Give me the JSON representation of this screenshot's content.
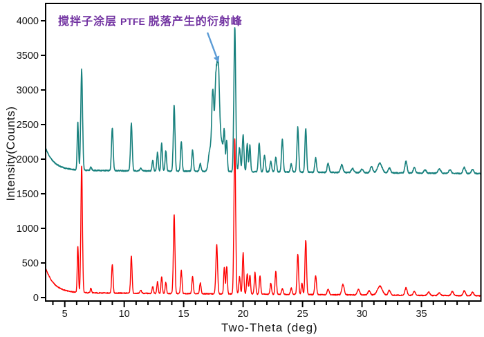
{
  "chart_data": {
    "type": "line",
    "title": "",
    "xlabel": "Two-Theta (deg)",
    "ylabel": "Intensity(Counts)",
    "x_range": [
      3.39,
      40.0
    ],
    "y_range": [
      -50,
      4250
    ],
    "x_major_ticks": [
      5,
      10,
      15,
      20,
      25,
      30,
      35
    ],
    "x_minor_tick_step": 1,
    "y_major_ticks": [
      0,
      500,
      1000,
      1500,
      2000,
      2500,
      3000,
      3500,
      4000
    ],
    "grid": false,
    "legend": "none",
    "frame_color": "#000000",
    "background": "#ffffff",
    "annotation": {
      "text_prefix": "搅拌子涂层 ",
      "text_code": "PTFE",
      "text_suffix": " 脱落产生的衍射峰",
      "text_color": "#7030a0",
      "arrow_color": "#5b9bd5",
      "arrow": {
        "from": [
          17.0,
          3830
        ],
        "to": [
          17.76,
          3480
        ]
      },
      "points_to": "diffraction peak at ~17.9 deg caused by PTFE stir-bar coating flaking"
    },
    "series": [
      {
        "name": "upper-trace-teal",
        "color": "#17807d",
        "line_width": 1.6,
        "seed": 11,
        "noise": 8,
        "baseline": {
          "flat": 1840,
          "slope_per_deg": -1.4,
          "start_hump": 320,
          "start_decay": 0.7
        },
        "peaks": [
          [
            6.1,
            680,
            0.055
          ],
          [
            6.42,
            1440,
            0.075
          ],
          [
            7.2,
            45,
            0.06
          ],
          [
            9.0,
            610,
            0.07
          ],
          [
            10.6,
            690,
            0.07
          ],
          [
            11.4,
            40,
            0.08
          ],
          [
            12.4,
            150,
            0.06
          ],
          [
            12.8,
            270,
            0.06
          ],
          [
            13.15,
            400,
            0.06
          ],
          [
            13.5,
            290,
            0.06
          ],
          [
            14.2,
            950,
            0.07
          ],
          [
            14.8,
            430,
            0.065
          ],
          [
            15.75,
            310,
            0.065
          ],
          [
            16.4,
            110,
            0.07
          ],
          [
            17.2,
            300,
            0.12
          ],
          [
            17.45,
            1150,
            0.09
          ],
          [
            17.7,
            1100,
            0.09
          ],
          [
            17.9,
            1380,
            0.11
          ],
          [
            18.2,
            420,
            0.2
          ],
          [
            18.42,
            380,
            0.055
          ],
          [
            18.62,
            400,
            0.055
          ],
          [
            19.3,
            2090,
            0.075
          ],
          [
            19.7,
            350,
            0.07
          ],
          [
            20.0,
            530,
            0.07
          ],
          [
            20.35,
            400,
            0.06
          ],
          [
            20.57,
            380,
            0.06
          ],
          [
            21.35,
            420,
            0.07
          ],
          [
            21.8,
            240,
            0.07
          ],
          [
            22.33,
            150,
            0.07
          ],
          [
            22.75,
            210,
            0.07
          ],
          [
            23.3,
            480,
            0.07
          ],
          [
            24.05,
            120,
            0.07
          ],
          [
            24.6,
            650,
            0.07
          ],
          [
            25.27,
            620,
            0.07
          ],
          [
            26.1,
            210,
            0.07
          ],
          [
            27.15,
            130,
            0.08
          ],
          [
            28.3,
            110,
            0.1
          ],
          [
            29.2,
            60,
            0.1
          ],
          [
            30.0,
            50,
            0.1
          ],
          [
            30.8,
            90,
            0.1
          ],
          [
            31.5,
            140,
            0.18
          ],
          [
            32.3,
            70,
            0.1
          ],
          [
            33.7,
            170,
            0.09
          ],
          [
            34.4,
            80,
            0.09
          ],
          [
            35.3,
            50,
            0.1
          ],
          [
            36.5,
            60,
            0.12
          ],
          [
            37.4,
            50,
            0.1
          ],
          [
            38.6,
            90,
            0.1
          ],
          [
            39.3,
            60,
            0.1
          ]
        ]
      },
      {
        "name": "lower-trace-red",
        "color": "#fe0000",
        "line_width": 1.4,
        "seed": 29,
        "noise": 7,
        "baseline": {
          "flat": 70,
          "slope_per_deg": -1.3,
          "start_hump": 360,
          "start_decay": 0.7
        },
        "peaks": [
          [
            6.1,
            680,
            0.05
          ],
          [
            6.42,
            1840,
            0.065
          ],
          [
            7.2,
            70,
            0.05
          ],
          [
            9.0,
            415,
            0.06
          ],
          [
            10.6,
            545,
            0.06
          ],
          [
            11.4,
            40,
            0.07
          ],
          [
            12.4,
            100,
            0.055
          ],
          [
            12.8,
            170,
            0.055
          ],
          [
            13.15,
            240,
            0.055
          ],
          [
            13.5,
            160,
            0.055
          ],
          [
            14.2,
            1150,
            0.065
          ],
          [
            14.8,
            330,
            0.06
          ],
          [
            15.75,
            250,
            0.06
          ],
          [
            16.4,
            160,
            0.06
          ],
          [
            17.78,
            720,
            0.07
          ],
          [
            18.42,
            380,
            0.055
          ],
          [
            18.62,
            400,
            0.055
          ],
          [
            19.3,
            2240,
            0.07
          ],
          [
            19.7,
            250,
            0.06
          ],
          [
            20.0,
            600,
            0.06
          ],
          [
            20.35,
            290,
            0.06
          ],
          [
            20.57,
            270,
            0.06
          ],
          [
            21.0,
            310,
            0.06
          ],
          [
            21.42,
            260,
            0.06
          ],
          [
            22.33,
            160,
            0.06
          ],
          [
            22.75,
            330,
            0.06
          ],
          [
            23.3,
            80,
            0.07
          ],
          [
            24.05,
            90,
            0.07
          ],
          [
            24.6,
            590,
            0.065
          ],
          [
            24.95,
            160,
            0.06
          ],
          [
            25.27,
            790,
            0.065
          ],
          [
            26.1,
            280,
            0.07
          ],
          [
            27.15,
            80,
            0.08
          ],
          [
            28.4,
            150,
            0.1
          ],
          [
            29.7,
            80,
            0.1
          ],
          [
            30.6,
            60,
            0.1
          ],
          [
            31.5,
            130,
            0.2
          ],
          [
            32.3,
            70,
            0.1
          ],
          [
            33.7,
            110,
            0.09
          ],
          [
            34.4,
            60,
            0.09
          ],
          [
            35.6,
            50,
            0.1
          ],
          [
            36.5,
            40,
            0.1
          ],
          [
            37.6,
            60,
            0.1
          ],
          [
            38.6,
            70,
            0.1
          ],
          [
            39.3,
            50,
            0.1
          ]
        ]
      }
    ]
  }
}
